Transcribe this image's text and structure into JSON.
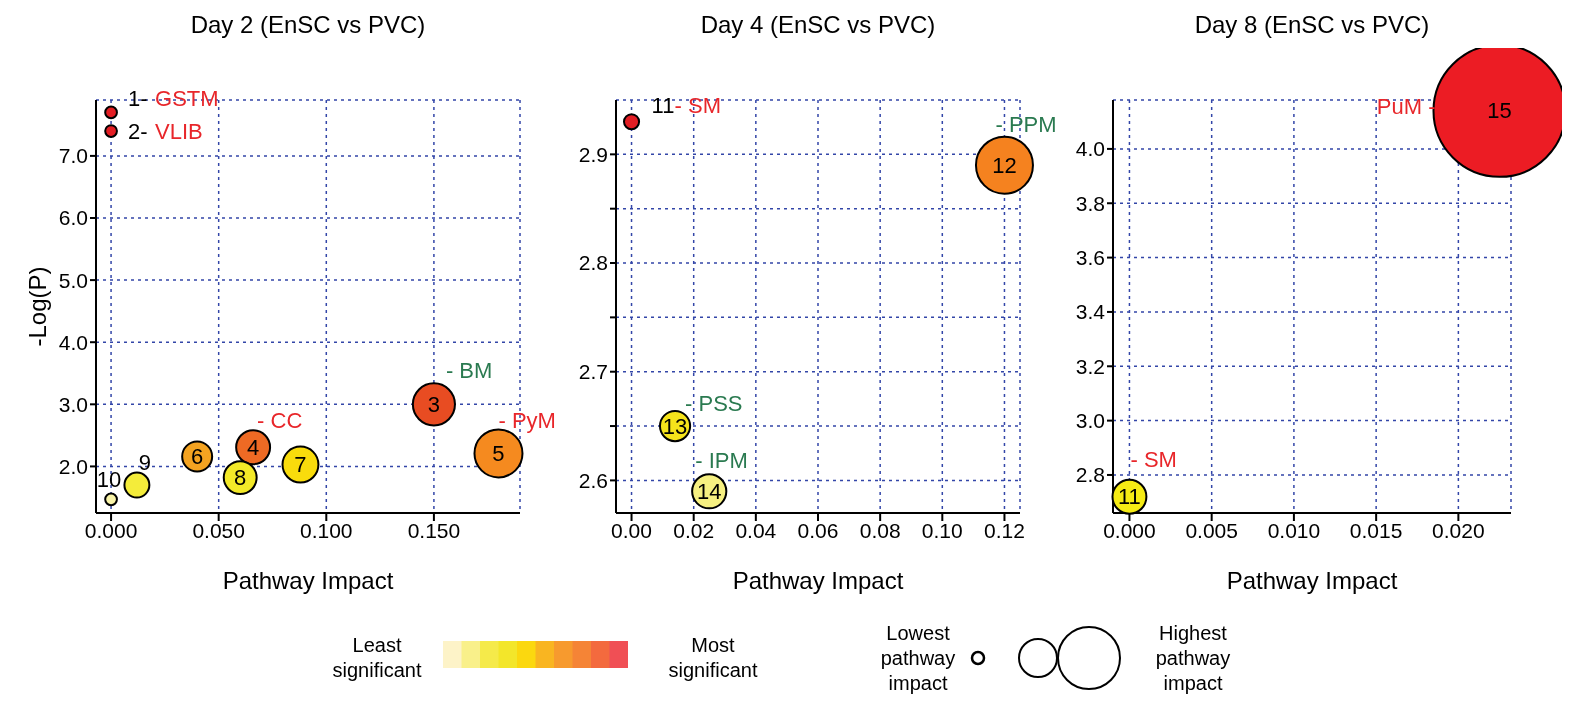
{
  "chart_data": [
    {
      "type": "bubble",
      "title": "Day 2 (EnSC vs PVC)",
      "xlabel": "Pathway Impact",
      "ylabel": "-Log(P)",
      "x": [
        0,
        0,
        0.15,
        0.066,
        0.18,
        0.04,
        0.088,
        0.06,
        0.012,
        0
      ],
      "values": [
        7.7,
        7.4,
        3.0,
        2.31,
        2.21,
        2.16,
        2.03,
        1.82,
        1.7,
        1.47
      ],
      "sizes": [
        0.06,
        0.06,
        0.77,
        0.5,
        1,
        0.39,
        0.56,
        0.47,
        0.27,
        0.06
      ],
      "colors": [
        "#e31e24",
        "#e31e24",
        "#e84c22",
        "#ee6a24",
        "#f58a1f",
        "#f4a321",
        "#f9dc0c",
        "#f3e928",
        "#f4ec3a",
        "#f8f3a8"
      ],
      "xlim": [
        -0.007,
        0.19
      ],
      "ylim": [
        1.25,
        7.9
      ],
      "xticks": [
        {
          "value": 0,
          "label": "0.000"
        },
        {
          "value": 0.05,
          "label": "0.050"
        },
        {
          "value": 0.1,
          "label": "0.100"
        },
        {
          "value": 0.15,
          "label": "0.150"
        }
      ],
      "yticks": [
        {
          "value": 2,
          "label": "2.0"
        },
        {
          "value": 3,
          "label": "3.0"
        },
        {
          "value": 4,
          "label": "4.0"
        },
        {
          "value": 5,
          "label": "5.0"
        },
        {
          "value": 6,
          "label": "6.0"
        },
        {
          "value": 7,
          "label": "7.0"
        }
      ],
      "grid": true,
      "annotations": [
        {
          "text": "1-",
          "x": 0,
          "y": 7.7
        },
        {
          "text": "GSTM",
          "x": 0,
          "y": 7.7
        },
        {
          "text": "2-",
          "x": 0,
          "y": 7.4
        },
        {
          "text": "VLIB",
          "x": 0,
          "y": 7.4
        },
        {
          "text": "3",
          "x": 0.15,
          "y": 3.0
        },
        {
          "text": "- BM",
          "x": 0.15,
          "y": 3.0
        },
        {
          "text": "4",
          "x": 0.066,
          "y": 2.31
        },
        {
          "text": "- CC",
          "x": 0.066,
          "y": 2.31
        },
        {
          "text": "5",
          "x": 0.18,
          "y": 2.21
        },
        {
          "text": "- PyM",
          "x": 0.18,
          "y": 2.21
        },
        {
          "text": "6",
          "x": 0.04,
          "y": 2.16
        },
        {
          "text": "7",
          "x": 0.088,
          "y": 2.03
        },
        {
          "text": "8",
          "x": 0.06,
          "y": 1.82
        },
        {
          "text": "9",
          "x": 0.012,
          "y": 1.7
        },
        {
          "text": "10",
          "x": 0,
          "y": 1.47
        }
      ]
    },
    {
      "type": "bubble",
      "title": "Day 4 (EnSC vs PVC)",
      "xlabel": "Pathway Impact",
      "x": [
        0,
        0.12,
        0.014,
        0.025
      ],
      "values": [
        2.93,
        2.89,
        2.65,
        2.59
      ],
      "sizes": [
        0.07,
        1,
        0.28,
        0.36
      ],
      "colors": [
        "#e31e24",
        "#f5821f",
        "#f5e31b",
        "#f6f081"
      ],
      "xlim": [
        -0.005,
        0.125
      ],
      "ylim": [
        2.57,
        2.95
      ],
      "xticks": [
        {
          "value": 0,
          "label": "0.00"
        },
        {
          "value": 0.02,
          "label": "0.02"
        },
        {
          "value": 0.04,
          "label": "0.04"
        },
        {
          "value": 0.06,
          "label": "0.06"
        },
        {
          "value": 0.08,
          "label": "0.08"
        },
        {
          "value": 0.1,
          "label": "0.10"
        },
        {
          "value": 0.12,
          "label": "0.12"
        }
      ],
      "yticks": [
        {
          "value": 2.6,
          "label": "2.6"
        },
        {
          "value": 2.65,
          "label": null
        },
        {
          "value": 2.7,
          "label": "2.7"
        },
        {
          "value": 2.75,
          "label": null
        },
        {
          "value": 2.8,
          "label": "2.8"
        },
        {
          "value": 2.85,
          "label": null
        },
        {
          "value": 2.9,
          "label": "2.9"
        }
      ],
      "grid": true,
      "annotations": [
        {
          "text": "11",
          "x": 0,
          "y": 2.93
        },
        {
          "text": "- SM",
          "x": 0,
          "y": 2.93
        },
        {
          "text": "12",
          "x": 0.12,
          "y": 2.89
        },
        {
          "text": "- PPM",
          "x": 0.12,
          "y": 2.89
        },
        {
          "text": "13",
          "x": 0.014,
          "y": 2.65
        },
        {
          "text": "- PSS",
          "x": 0.014,
          "y": 2.65
        },
        {
          "text": "14",
          "x": 0.025,
          "y": 2.59
        },
        {
          "text": "- IPM",
          "x": 0.025,
          "y": 2.59
        }
      ]
    },
    {
      "type": "bubble",
      "title": "Day 8 (EnSC vs PVC)",
      "xlabel": "Pathway Impact",
      "x": [
        0,
        0.0225
      ],
      "values": [
        2.72,
        4.14
      ],
      "sizes": [
        0.066,
        1
      ],
      "colors": [
        "#f5eb14",
        "#ec1c24"
      ],
      "xlim": [
        -0.001,
        0.0232
      ],
      "ylim": [
        2.66,
        4.18
      ],
      "xticks": [
        {
          "value": 0,
          "label": "0.000"
        },
        {
          "value": 0.005,
          "label": "0.005"
        },
        {
          "value": 0.01,
          "label": "0.010"
        },
        {
          "value": 0.015,
          "label": "0.015"
        },
        {
          "value": 0.02,
          "label": "0.020"
        }
      ],
      "yticks": [
        {
          "value": 2.8,
          "label": "2.8"
        },
        {
          "value": 3,
          "label": "3.0"
        },
        {
          "value": 3.2,
          "label": "3.2"
        },
        {
          "value": 3.4,
          "label": "3.4"
        },
        {
          "value": 3.6,
          "label": "3.6"
        },
        {
          "value": 3.8,
          "label": "3.8"
        },
        {
          "value": 4,
          "label": "4.0"
        }
      ],
      "grid": true,
      "annotations": [
        {
          "text": "11",
          "x": 0,
          "y": 2.72
        },
        {
          "text": "- SM",
          "x": 0,
          "y": 2.72
        },
        {
          "text": "15",
          "x": 0.0225,
          "y": 4.14
        },
        {
          "text": "PuM -",
          "x": 0.0225,
          "y": 4.14
        }
      ]
    },
    {
      "type": "other",
      "colors": [
        "#fdf3c8",
        "#f9f08a",
        "#f5ea4a",
        "#f3e62a",
        "#fbd80f",
        "#f9b521",
        "#f79a2e",
        "#f58436",
        "#f36a3e",
        "#f04f55"
      ],
      "annotations": [
        "Least significant",
        "Most significant",
        "Lowest pathway impact",
        "Highest pathway impact"
      ]
    }
  ]
}
